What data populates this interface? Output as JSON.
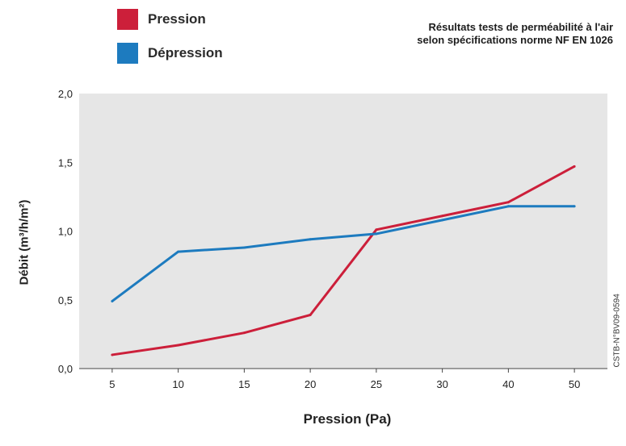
{
  "legend": [
    {
      "label": "Pression",
      "color": "#cc1f3a"
    },
    {
      "label": "Dépression",
      "color": "#1d7bbf"
    }
  ],
  "note": {
    "line1": "Résultats tests de perméabilité à l'air",
    "line2": "selon spécifications norme NF EN 1026"
  },
  "source": "CSTB-N°BV09-0594",
  "chart_data": {
    "type": "line",
    "categories": [
      "5",
      "10",
      "15",
      "20",
      "25",
      "30",
      "40",
      "50"
    ],
    "series": [
      {
        "name": "Pression",
        "color": "#cc1f3a",
        "values": [
          0.1,
          0.17,
          0.26,
          0.39,
          1.01,
          1.11,
          1.21,
          1.47
        ]
      },
      {
        "name": "Dépression",
        "color": "#1d7bbf",
        "values": [
          0.49,
          0.85,
          0.88,
          0.94,
          0.98,
          1.08,
          1.18,
          1.18
        ]
      }
    ],
    "xlabel": "Pression (Pa)",
    "ylabel": "Débit (m³/h/m²)",
    "ylim": [
      0,
      2
    ],
    "yticks": [
      0,
      0.5,
      1,
      1.5,
      2
    ],
    "ytick_labels": [
      "0,0",
      "0,5",
      "1,0",
      "1,5",
      "2,0"
    ],
    "plot_background": "#e6e6e6",
    "grid": false
  }
}
